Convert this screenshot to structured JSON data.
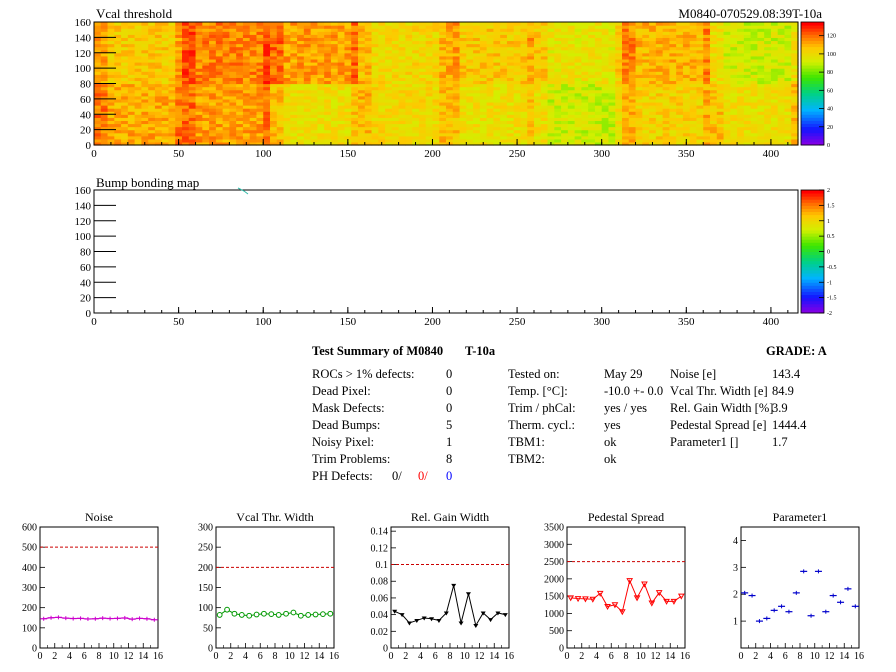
{
  "header": {
    "map1_title": "Vcal threshold",
    "module_id": "M0840-070529.08:39T-10a",
    "map2_title": "Bump bonding map"
  },
  "maps": [
    {
      "name": "Vcal threshold",
      "x_ticks": [
        "0",
        "50",
        "100",
        "150",
        "200",
        "250",
        "300",
        "350",
        "400"
      ],
      "y_ticks": [
        "0",
        "20",
        "40",
        "60",
        "80",
        "100",
        "120",
        "140",
        "160"
      ],
      "x_range": [
        0,
        416
      ],
      "y_range": [
        0,
        160
      ],
      "palette_ticks": [
        "0",
        "20",
        "40",
        "60",
        "80",
        "100",
        "120"
      ],
      "palette_range": [
        0,
        135
      ]
    },
    {
      "name": "Bump bonding map",
      "x_ticks": [
        "0",
        "50",
        "100",
        "150",
        "200",
        "250",
        "300",
        "350",
        "400"
      ],
      "y_ticks": [
        "0",
        "20",
        "40",
        "60",
        "80",
        "100",
        "120",
        "140",
        "160"
      ],
      "x_range": [
        0,
        416
      ],
      "y_range": [
        0,
        160
      ],
      "palette_ticks": [
        "-2",
        "-1.5",
        "-1",
        "-0.5",
        "0",
        "0.5",
        "1",
        "1.5",
        "2"
      ],
      "palette_range": [
        -2,
        2
      ]
    }
  ],
  "summary": {
    "title": "Test Summary of M0840",
    "temp_label": "T-10a",
    "grade_label": "GRADE:  A",
    "left": [
      {
        "label": "ROCs > 1% defects:",
        "value": "0"
      },
      {
        "label": "Dead Pixel:",
        "value": "0"
      },
      {
        "label": "Mask Defects:",
        "value": "0"
      },
      {
        "label": "Dead Bumps:",
        "value": "5"
      },
      {
        "label": "Noisy Pixel:",
        "value": "1"
      },
      {
        "label": "Trim Problems:",
        "value": "8"
      }
    ],
    "ph_defects": {
      "label": "PH Defects:",
      "v1": "0/",
      "v2": "0/",
      "v3": "0"
    },
    "middle": [
      {
        "label": "Tested on:",
        "value": "May 29"
      },
      {
        "label": "Temp. [°C]:",
        "value": "-10.0 +- 0.0"
      },
      {
        "label": "Trim / phCal:",
        "value": "yes / yes"
      },
      {
        "label": "Therm. cycl.:",
        "value": "yes"
      },
      {
        "label": "TBM1:",
        "value": "ok"
      },
      {
        "label": "TBM2:",
        "value": "ok"
      }
    ],
    "right": [
      {
        "label": "Noise [e]",
        "value": "143.4"
      },
      {
        "label": "Vcal Thr. Width [e]",
        "value": "84.9"
      },
      {
        "label": "Rel. Gain Width [%]",
        "value": "3.9"
      },
      {
        "label": "Pedestal Spread [e]",
        "value": "1444.4"
      },
      {
        "label": "Parameter1 []",
        "value": "1.7"
      }
    ]
  },
  "colors": {
    "ph_red": "#ff0000",
    "ph_blue": "#0000ff"
  },
  "chart_data": [
    {
      "type": "line",
      "title": "Noise",
      "color": "#cc00cc",
      "marker": "hbar",
      "x": [
        0,
        1,
        2,
        3,
        4,
        5,
        6,
        7,
        8,
        9,
        10,
        11,
        12,
        13,
        14,
        15
      ],
      "values": [
        145,
        150,
        152,
        148,
        146,
        147,
        144,
        145,
        148,
        146,
        147,
        149,
        143,
        147,
        145,
        140
      ],
      "xlim": [
        0,
        16
      ],
      "ylim": [
        0,
        600
      ],
      "ref_line": 500,
      "y_ticks": [
        "0",
        "100",
        "200",
        "300",
        "400",
        "500",
        "600"
      ],
      "x_ticks": [
        "0",
        "2",
        "4",
        "6",
        "8",
        "10",
        "12",
        "14",
        "16"
      ]
    },
    {
      "type": "line",
      "title": "Vcal Thr. Width",
      "color": "#009900",
      "marker": "circle",
      "x": [
        0,
        1,
        2,
        3,
        4,
        5,
        6,
        7,
        8,
        9,
        10,
        11,
        12,
        13,
        14,
        15
      ],
      "values": [
        82,
        95,
        85,
        82,
        80,
        83,
        85,
        84,
        82,
        85,
        88,
        80,
        82,
        83,
        84,
        85
      ],
      "xlim": [
        0,
        16
      ],
      "ylim": [
        0,
        300
      ],
      "ref_line": 200,
      "y_ticks": [
        "0",
        "50",
        "100",
        "150",
        "200",
        "250",
        "300"
      ],
      "x_ticks": [
        "0",
        "2",
        "4",
        "6",
        "8",
        "10",
        "12",
        "14",
        "16"
      ]
    },
    {
      "type": "line",
      "title": "Rel. Gain Width",
      "color": "#000000",
      "marker": "triangle",
      "x": [
        0,
        1,
        2,
        3,
        4,
        5,
        6,
        7,
        8,
        9,
        10,
        11,
        12,
        13,
        14,
        15
      ],
      "values": [
        0.044,
        0.04,
        0.03,
        0.033,
        0.036,
        0.035,
        0.033,
        0.042,
        0.075,
        0.03,
        0.065,
        0.027,
        0.042,
        0.034,
        0.042,
        0.04
      ],
      "xlim": [
        0,
        16
      ],
      "ylim": [
        0,
        0.145
      ],
      "ref_line": 0.1,
      "y_ticks": [
        "0",
        "0.02",
        "0.04",
        "0.06",
        "0.08",
        "0.1",
        "0.12",
        "0.14"
      ],
      "x_ticks": [
        "0",
        "2",
        "4",
        "6",
        "8",
        "10",
        "12",
        "14",
        "16"
      ]
    },
    {
      "type": "line",
      "title": "Pedestal Spread",
      "color": "#ff0000",
      "marker": "triangle-down",
      "x": [
        0,
        1,
        2,
        3,
        4,
        5,
        6,
        7,
        8,
        9,
        10,
        11,
        12,
        13,
        14,
        15
      ],
      "values": [
        1450,
        1430,
        1420,
        1410,
        1580,
        1200,
        1250,
        1050,
        1950,
        1450,
        1850,
        1300,
        1600,
        1350,
        1350,
        1500
      ],
      "xlim": [
        0,
        16
      ],
      "ylim": [
        0,
        3500
      ],
      "ref_line": 2500,
      "y_ticks": [
        "0",
        "500",
        "1000",
        "1500",
        "2000",
        "2500",
        "3000",
        "3500"
      ],
      "x_ticks": [
        "0",
        "2",
        "4",
        "6",
        "8",
        "10",
        "12",
        "14",
        "16"
      ]
    },
    {
      "type": "scatter",
      "title": "Parameter1",
      "color": "#0000cc",
      "marker": "hbar",
      "x": [
        0,
        1,
        2,
        3,
        4,
        5,
        6,
        7,
        8,
        9,
        10,
        11,
        12,
        13,
        14,
        15
      ],
      "values": [
        2.05,
        1.95,
        1.0,
        1.1,
        1.4,
        1.55,
        1.35,
        2.05,
        2.85,
        1.2,
        2.85,
        1.35,
        1.95,
        1.7,
        2.2,
        1.55
      ],
      "xlim": [
        0,
        16
      ],
      "ylim": [
        0,
        4.5
      ],
      "y_ticks": [
        "1",
        "2",
        "3",
        "4"
      ],
      "x_ticks": [
        "0",
        "2",
        "4",
        "6",
        "8",
        "10",
        "12",
        "14",
        "16"
      ]
    }
  ]
}
